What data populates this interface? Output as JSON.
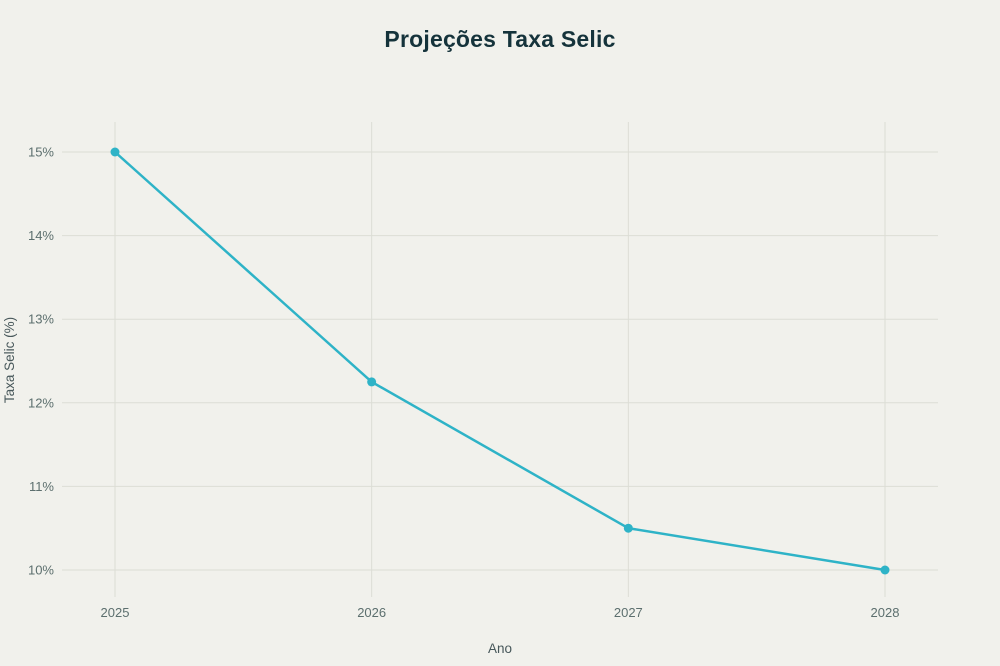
{
  "chart_data": {
    "type": "line",
    "title": "Projeções Taxa Selic",
    "xlabel": "Ano",
    "ylabel": "Taxa Selic (%)",
    "x": [
      "2025",
      "2026",
      "2027",
      "2028"
    ],
    "series": [
      {
        "name": "Taxa Selic",
        "values": [
          15,
          12.25,
          10.5,
          10
        ]
      }
    ],
    "ylim": [
      10,
      15
    ],
    "yticks": [
      10,
      11,
      12,
      13,
      14,
      15
    ],
    "ytick_suffix": "%",
    "grid": true,
    "legend": false,
    "colors": {
      "line": "#2eb3c7",
      "background": "#f1f1ec",
      "grid": "#dcddd5",
      "title_text": "#15333b",
      "tick_text": "#5c6f6e",
      "axis_label_text": "#47575a"
    }
  }
}
